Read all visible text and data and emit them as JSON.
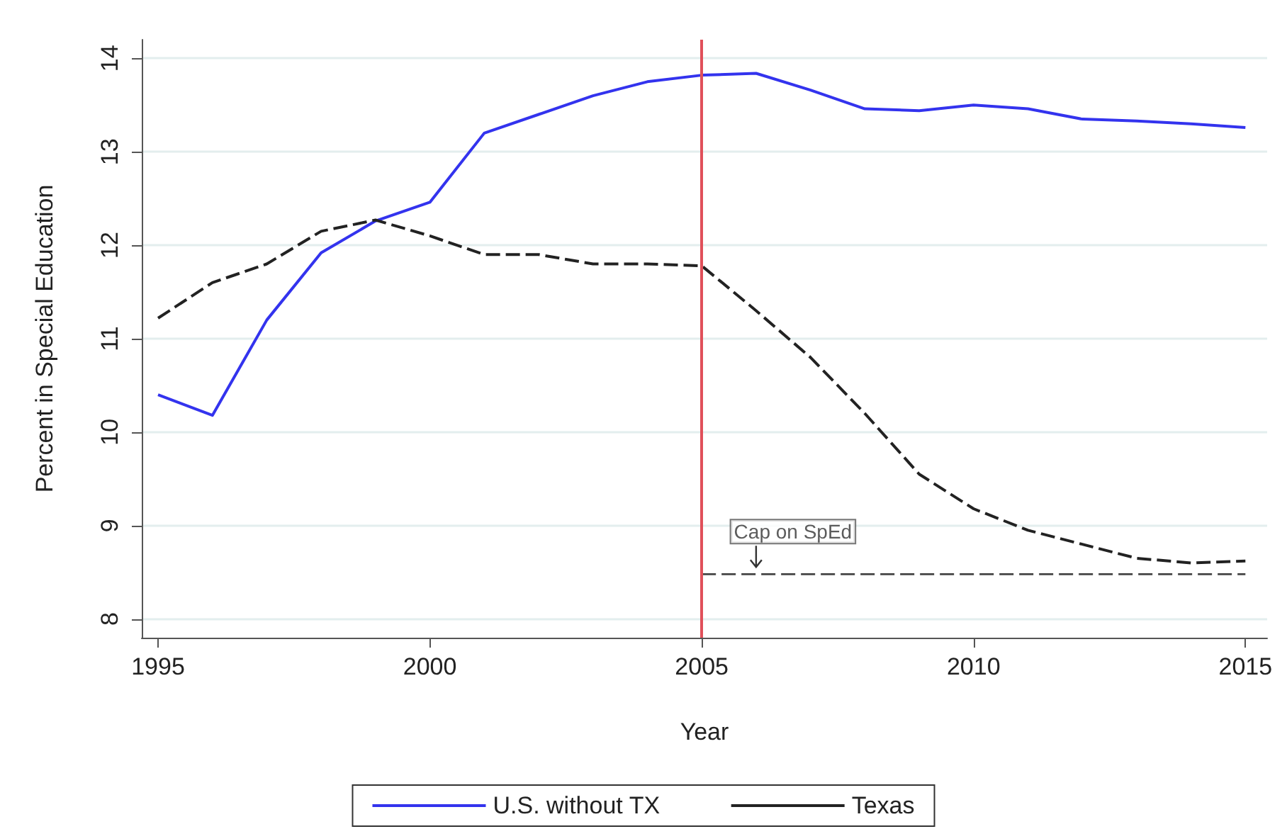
{
  "chart_data": {
    "type": "line",
    "xlabel": "Year",
    "ylabel": "Percent in Special Education",
    "x": [
      1995,
      1996,
      1997,
      1998,
      1999,
      2000,
      2001,
      2002,
      2003,
      2004,
      2005,
      2006,
      2007,
      2008,
      2009,
      2010,
      2011,
      2012,
      2013,
      2014,
      2015
    ],
    "series": [
      {
        "name": "U.S. without TX",
        "color": "#3333ee",
        "line_style": "solid",
        "values": [
          10.4,
          10.18,
          11.2,
          11.92,
          12.26,
          12.46,
          13.2,
          13.4,
          13.6,
          13.75,
          13.82,
          13.84,
          13.66,
          13.46,
          13.44,
          13.5,
          13.46,
          13.35,
          13.33,
          13.3,
          13.26
        ]
      },
      {
        "name": "Texas",
        "color": "#222222",
        "line_style": "dashed",
        "values": [
          11.22,
          11.6,
          11.8,
          12.15,
          12.27,
          12.1,
          11.9,
          11.9,
          11.8,
          11.8,
          11.78,
          11.3,
          10.8,
          10.2,
          9.55,
          9.18,
          8.95,
          8.8,
          8.65,
          8.6,
          8.62
        ]
      },
      {
        "color": "#444444",
        "line_style": "dashed",
        "x": [
          2005,
          2015
        ],
        "values": [
          8.48,
          8.48
        ]
      }
    ],
    "ref_lines": [
      {
        "axis": "x",
        "value": 2005,
        "color": "#e0505a",
        "line_style": "solid"
      }
    ],
    "annotations": [
      {
        "text": "Cap on SpEd",
        "x": 2006,
        "y": 8.48
      }
    ],
    "xlim": [
      1994.7,
      2015.4
    ],
    "xticks": [
      1995,
      2000,
      2005,
      2010,
      2015
    ],
    "ylim": [
      7.8,
      14.2
    ],
    "yticks": [
      8,
      9,
      10,
      11,
      12,
      13,
      14
    ],
    "grid": "y",
    "legend": "bottom",
    "marker": "none"
  }
}
